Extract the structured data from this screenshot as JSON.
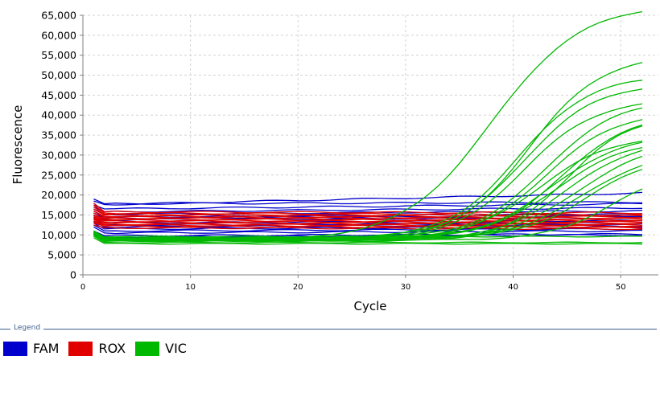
{
  "chart_data": {
    "type": "line",
    "title": "",
    "xlabel": "Cycle",
    "ylabel": "Fluorescence",
    "xlim": [
      0,
      53.5
    ],
    "ylim": [
      0,
      65000
    ],
    "xticks": [
      0,
      10,
      20,
      30,
      40,
      50
    ],
    "yticks": [
      0,
      5000,
      10000,
      15000,
      20000,
      25000,
      30000,
      35000,
      40000,
      45000,
      50000,
      55000,
      60000,
      65000
    ],
    "ytick_labels": [
      "0",
      "5,000",
      "10,000",
      "15,000",
      "20,000",
      "25,000",
      "30,000",
      "35,000",
      "40,000",
      "45,000",
      "50,000",
      "55,000",
      "60,000",
      "65,000"
    ],
    "grid": true,
    "legend_position": "bottom",
    "colors": {
      "FAM": "#0000cc",
      "ROX": "#e00000",
      "VIC": "#00b800"
    },
    "series_groups": [
      {
        "name": "FAM",
        "color": "#0000cc",
        "type": "flat",
        "curves": [
          {
            "start": 19000,
            "plateau": 17800,
            "end": 18200
          },
          {
            "start": 18500,
            "plateau": 17600,
            "end": 20500
          },
          {
            "start": 17500,
            "plateau": 16500,
            "end": 17800
          },
          {
            "start": 17000,
            "plateau": 15800,
            "end": 16800
          },
          {
            "start": 16500,
            "plateau": 15200,
            "end": 16000
          },
          {
            "start": 16000,
            "plateau": 14500,
            "end": 15200
          },
          {
            "start": 15500,
            "plateau": 14200,
            "end": 14800
          },
          {
            "start": 15000,
            "plateau": 13800,
            "end": 14300
          },
          {
            "start": 14500,
            "plateau": 13000,
            "end": 13600
          },
          {
            "start": 14000,
            "plateau": 12500,
            "end": 13000
          },
          {
            "start": 13500,
            "plateau": 12000,
            "end": 12600
          },
          {
            "start": 13000,
            "plateau": 11500,
            "end": 12000
          },
          {
            "start": 12500,
            "plateau": 11000,
            "end": 11500
          },
          {
            "start": 12000,
            "plateau": 10500,
            "end": 11000
          },
          {
            "start": 11000,
            "plateau": 9800,
            "end": 10200
          },
          {
            "start": 10500,
            "plateau": 9500,
            "end": 10000
          }
        ]
      },
      {
        "name": "ROX",
        "color": "#e00000",
        "type": "flat",
        "curves": [
          {
            "start": 18000,
            "plateau": 15800,
            "end": 15500
          },
          {
            "start": 17500,
            "plateau": 15500,
            "end": 15000
          },
          {
            "start": 17000,
            "plateau": 15200,
            "end": 14800
          },
          {
            "start": 16500,
            "plateau": 15000,
            "end": 14500
          },
          {
            "start": 16000,
            "plateau": 14700,
            "end": 14200
          },
          {
            "start": 15500,
            "plateau": 14500,
            "end": 14000
          },
          {
            "start": 15000,
            "plateau": 14200,
            "end": 13700
          },
          {
            "start": 14800,
            "plateau": 14000,
            "end": 13500
          },
          {
            "start": 14500,
            "plateau": 13700,
            "end": 13200
          },
          {
            "start": 14200,
            "plateau": 13500,
            "end": 13000
          },
          {
            "start": 14000,
            "plateau": 13200,
            "end": 12700
          },
          {
            "start": 13800,
            "plateau": 13000,
            "end": 12500
          },
          {
            "start": 13500,
            "plateau": 12700,
            "end": 12200
          },
          {
            "start": 13200,
            "plateau": 12500,
            "end": 12000
          },
          {
            "start": 13000,
            "plateau": 12200,
            "end": 11800
          },
          {
            "start": 12500,
            "plateau": 11800,
            "end": 11500
          }
        ]
      },
      {
        "name": "VIC",
        "color": "#00b800",
        "type": "sigmoid",
        "curves": [
          {
            "base": 8500,
            "plateau": 68000,
            "mid": 38.0,
            "k": 0.24
          },
          {
            "base": 8800,
            "plateau": 55000,
            "mid": 41.5,
            "k": 0.3
          },
          {
            "base": 9000,
            "plateau": 50000,
            "mid": 40.5,
            "k": 0.3
          },
          {
            "base": 9200,
            "plateau": 48000,
            "mid": 41.0,
            "k": 0.3
          },
          {
            "base": 8600,
            "plateau": 44000,
            "mid": 41.0,
            "k": 0.3
          },
          {
            "base": 9100,
            "plateau": 44000,
            "mid": 43.0,
            "k": 0.3
          },
          {
            "base": 8700,
            "plateau": 41000,
            "mid": 43.0,
            "k": 0.3
          },
          {
            "base": 9300,
            "plateau": 40000,
            "mid": 44.5,
            "k": 0.32
          },
          {
            "base": 8400,
            "plateau": 40000,
            "mid": 45.0,
            "k": 0.34
          },
          {
            "base": 9000,
            "plateau": 35000,
            "mid": 42.5,
            "k": 0.3
          },
          {
            "base": 8800,
            "plateau": 35000,
            "mid": 43.5,
            "k": 0.3
          },
          {
            "base": 9100,
            "plateau": 34000,
            "mid": 44.0,
            "k": 0.3
          },
          {
            "base": 8500,
            "plateau": 34000,
            "mid": 45.0,
            "k": 0.3
          },
          {
            "base": 8900,
            "plateau": 33000,
            "mid": 46.0,
            "k": 0.3
          },
          {
            "base": 9200,
            "plateau": 30000,
            "mid": 47.0,
            "k": 0.32
          },
          {
            "base": 9000,
            "plateau": 31000,
            "mid": 46.5,
            "k": 0.3
          },
          {
            "base": 8700,
            "plateau": 26000,
            "mid": 49.0,
            "k": 0.34
          },
          {
            "base": 7800,
            "plateau": 7800,
            "mid": 50,
            "k": 0.3
          },
          {
            "base": 8100,
            "plateau": 8100,
            "mid": 50,
            "k": 0.3
          },
          {
            "base": 9600,
            "plateau": 9600,
            "mid": 50,
            "k": 0.3
          }
        ]
      }
    ]
  },
  "legend": {
    "title": "Legend",
    "items": [
      {
        "label": "FAM",
        "color": "#0000cc"
      },
      {
        "label": "ROX",
        "color": "#e00000"
      },
      {
        "label": "VIC",
        "color": "#00b800"
      }
    ]
  }
}
